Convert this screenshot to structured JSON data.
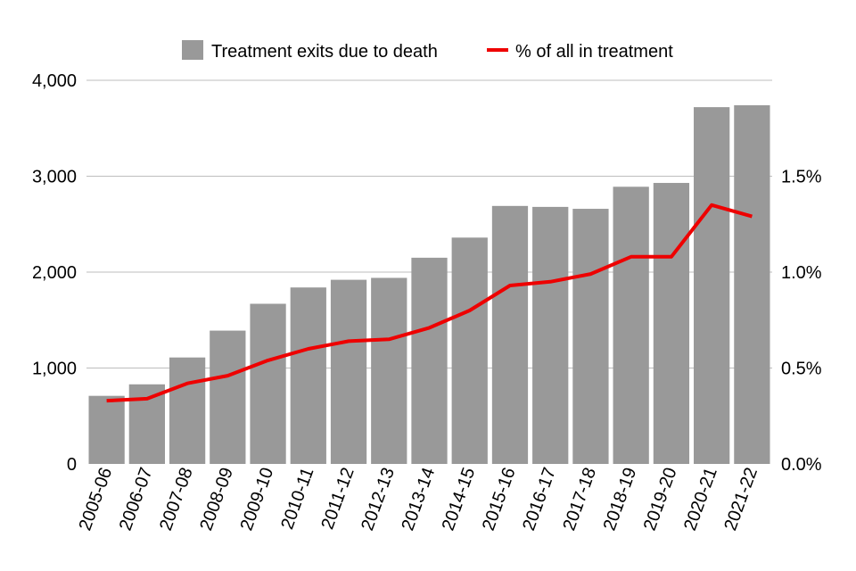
{
  "chart_data": {
    "type": "bar",
    "title": "",
    "xlabel": "",
    "ylabel": "",
    "categories": [
      "2005-06",
      "2006-07",
      "2007-08",
      "2008-09",
      "2009-10",
      "2010-11",
      "2011-12",
      "2012-13",
      "2013-14",
      "2014-15",
      "2015-16",
      "2016-17",
      "2017-18",
      "2018-19",
      "2019-20",
      "2020-21",
      "2021-22"
    ],
    "series": [
      {
        "name": "Treatment exits due to death",
        "type": "bar",
        "axis": "left",
        "color": "#999999",
        "values": [
          710,
          830,
          1110,
          1390,
          1670,
          1840,
          1920,
          1940,
          2150,
          2360,
          2690,
          2680,
          2660,
          2890,
          2930,
          3720,
          3740
        ]
      },
      {
        "name": "% of all in treatment",
        "type": "line",
        "axis": "right",
        "color": "#ee0000",
        "values": [
          0.33,
          0.34,
          0.42,
          0.46,
          0.54,
          0.6,
          0.64,
          0.65,
          0.71,
          0.8,
          0.93,
          0.95,
          0.99,
          1.08,
          1.08,
          1.35,
          1.29
        ]
      }
    ],
    "ylim": [
      0,
      4000
    ],
    "y_ticks": [
      "0",
      "1,000",
      "2,000",
      "3,000",
      "4,000"
    ],
    "y2lim": [
      0,
      2.0
    ],
    "y2_ticks": [
      "0.0%",
      "0.5%",
      "1.0%",
      "1.5%"
    ],
    "grid": true,
    "legend": "top-center"
  }
}
